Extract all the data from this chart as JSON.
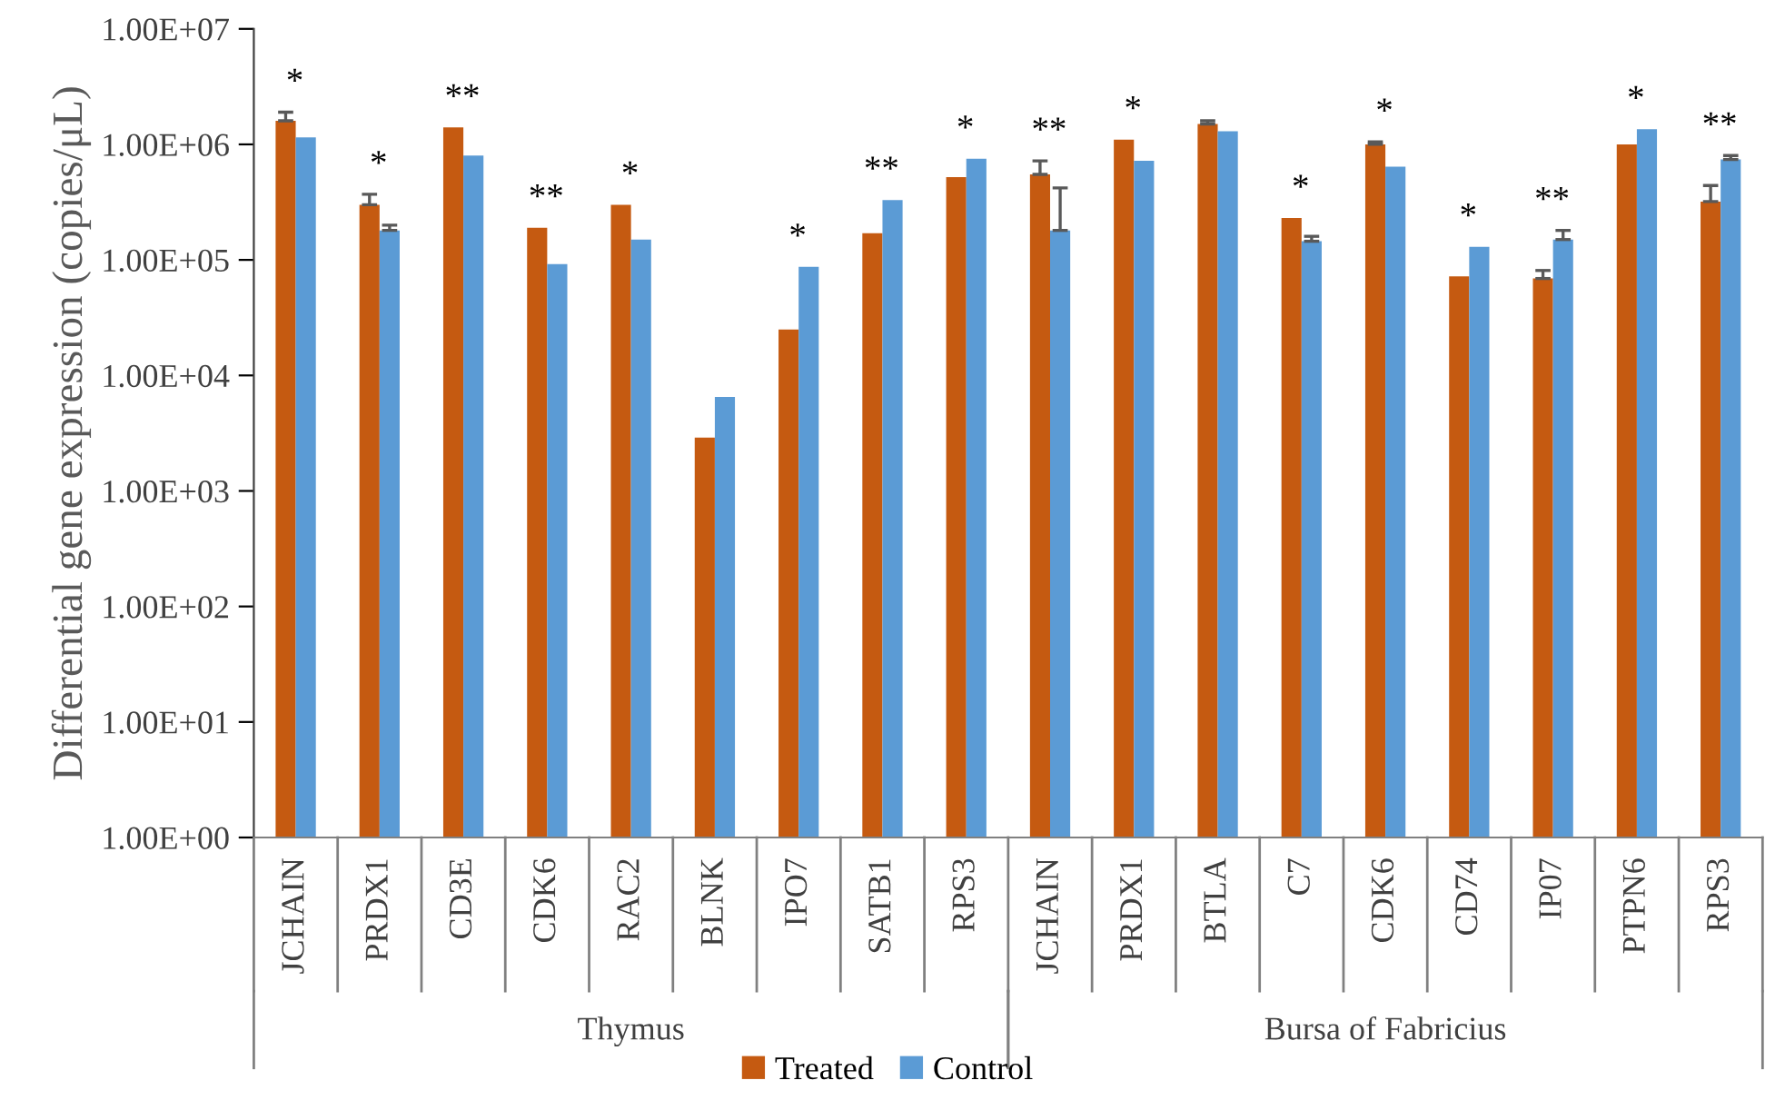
{
  "chart_data": {
    "type": "bar",
    "ylabel": "Differential gene expression (copies/μL)",
    "categories": [
      "JCHAIN",
      "PRDX1",
      "CD3E",
      "CDK6",
      "RAC2",
      "BLNK",
      "IPO7",
      "SATB1",
      "RPS3",
      "JCHAIN",
      "PRDX1",
      "BTLA",
      "C7",
      "CDK6",
      "CD74",
      "IP07",
      "PTPN6",
      "RPS3"
    ],
    "series": [
      {
        "name": "Treated",
        "color": "#c55a11",
        "values": [
          1600000,
          300000,
          1400000,
          190000,
          300000,
          2900,
          25000,
          170000,
          520000,
          550000,
          1100000,
          1500000,
          230000,
          1000000,
          72000,
          69000,
          1000000,
          320000
        ],
        "value_labels": [
          "*",
          "*",
          "**",
          "**",
          "*",
          null,
          "*",
          "**",
          "*",
          "**",
          "*",
          null,
          "*",
          "*",
          "*",
          "**",
          "*",
          "**"
        ],
        "errors": [
          [
            1600000,
            1900000
          ],
          [
            300000,
            370000
          ],
          null,
          null,
          null,
          null,
          null,
          null,
          null,
          [
            550000,
            720000
          ],
          null,
          [
            1500000,
            1600000
          ],
          null,
          [
            1000000,
            1050000
          ],
          null,
          [
            69000,
            81000
          ],
          null,
          [
            320000,
            440000
          ]
        ]
      },
      {
        "name": "Control",
        "color": "#5b9bd5",
        "values": [
          1150000,
          180000,
          800000,
          92000,
          150000,
          6500,
          87000,
          330000,
          750000,
          180000,
          720000,
          1300000,
          145000,
          640000,
          130000,
          150000,
          1350000,
          740000
        ],
        "errors": [
          null,
          [
            180000,
            200000
          ],
          null,
          null,
          null,
          null,
          null,
          null,
          null,
          [
            180000,
            420000
          ],
          null,
          null,
          [
            145000,
            160000
          ],
          null,
          null,
          [
            150000,
            180000
          ],
          null,
          [
            740000,
            800000
          ]
        ]
      }
    ],
    "log": true,
    "ylim": [
      1,
      10000000
    ],
    "yticks": [
      {
        "value": 1,
        "label": "1.00E+00"
      },
      {
        "value": 10,
        "label": "1.00E+01"
      },
      {
        "value": 100,
        "label": "1.00E+02"
      },
      {
        "value": 1000,
        "label": "1.00E+03"
      },
      {
        "value": 10000,
        "label": "1.00E+04"
      },
      {
        "value": 100000,
        "label": "1.00E+05"
      },
      {
        "value": 1000000,
        "label": "1.00E+06"
      },
      {
        "value": 10000000,
        "label": "1.00E+07"
      }
    ],
    "grid": false,
    "legend": "bottom",
    "annotations": [
      "Thymus",
      "Bursa of Fabricius"
    ]
  }
}
